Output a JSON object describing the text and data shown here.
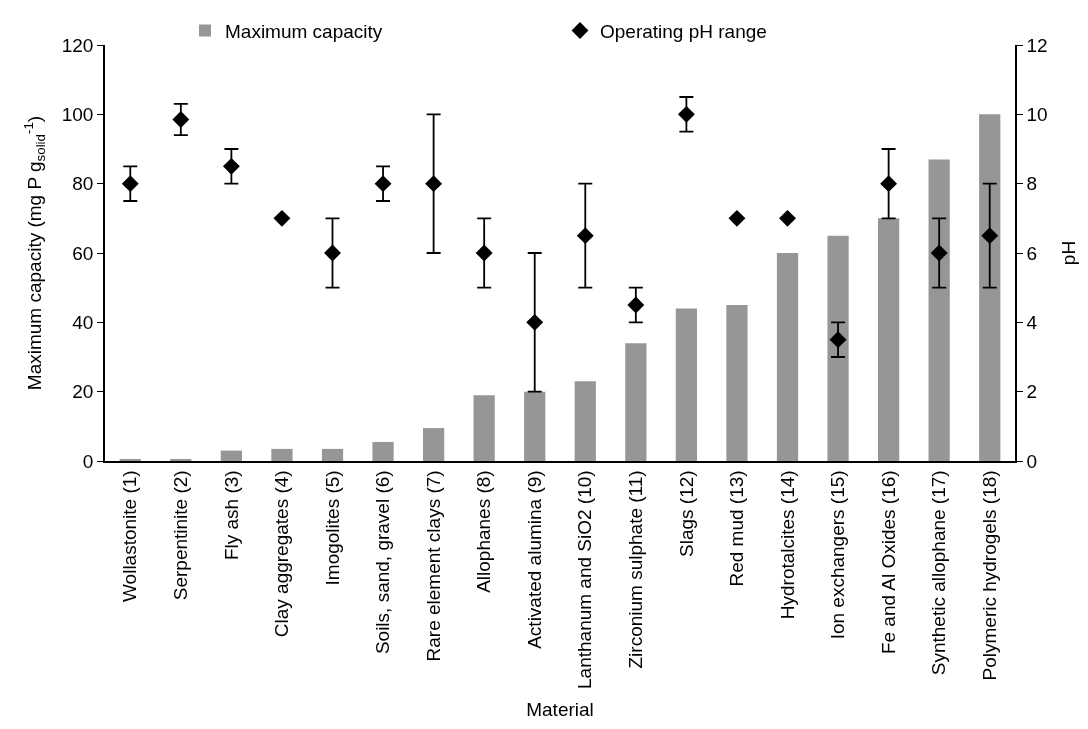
{
  "chart_data": {
    "type": "bar",
    "xlabel": "Material",
    "ylabel": "Maximum capacity (mg P g$_{solid}$$^{-1}$)",
    "y2label": "pH",
    "categories": [
      "Wollastonite (1)",
      "Serpentinite (2)",
      "Fly ash (3)",
      "Clay aggregates (4)",
      "Imogolites (5)",
      "Soils, sand, gravel (6)",
      "Rare element clays (7)",
      "Allophanes (8)",
      "Activated alumina (9)",
      "Lanthanum and SiO2 (10)",
      "Zirconium sulphate (11)",
      "Slags (12)",
      "Red mud (13)",
      "Hydrotalcites (14)",
      "Ion exchangers (15)",
      "Fe and Al Oxides (16)",
      "Synthetic allophane (17)",
      "Polymeric hydrogels (18)"
    ],
    "series": [
      {
        "name": "Maximum capacity",
        "color": "#969696",
        "values": [
          0.3,
          0.3,
          3,
          3.5,
          3.5,
          5.5,
          9.5,
          19,
          20,
          23,
          34,
          44,
          45,
          60,
          65,
          70,
          87,
          100
        ]
      },
      {
        "name": "Operating pH range",
        "type": "scatter",
        "axis": "y2",
        "color": "#000000",
        "marker": "diamond",
        "values": [
          8,
          9.85,
          8.5,
          7,
          6,
          8,
          8,
          6,
          4,
          6.5,
          4.5,
          10,
          7,
          7,
          3.5,
          8,
          6,
          6.5
        ],
        "errors": [
          [
            7.5,
            8.5
          ],
          [
            9.4,
            10.3
          ],
          [
            8,
            9
          ],
          null,
          [
            5,
            7
          ],
          [
            7.5,
            8.5
          ],
          [
            6,
            10
          ],
          [
            5,
            7
          ],
          [
            2,
            6
          ],
          [
            5,
            8
          ],
          [
            4,
            5
          ],
          [
            9.5,
            10.5
          ],
          null,
          null,
          [
            3,
            4
          ],
          [
            7,
            9
          ],
          [
            5,
            7
          ],
          [
            5,
            8
          ]
        ]
      }
    ],
    "ylim": [
      0,
      120
    ],
    "yticks": [
      0,
      20,
      40,
      60,
      80,
      100,
      120
    ],
    "y2lim": [
      0,
      12
    ],
    "y2ticks": [
      0,
      2,
      4,
      6,
      8,
      10,
      12
    ],
    "legend": "top"
  }
}
